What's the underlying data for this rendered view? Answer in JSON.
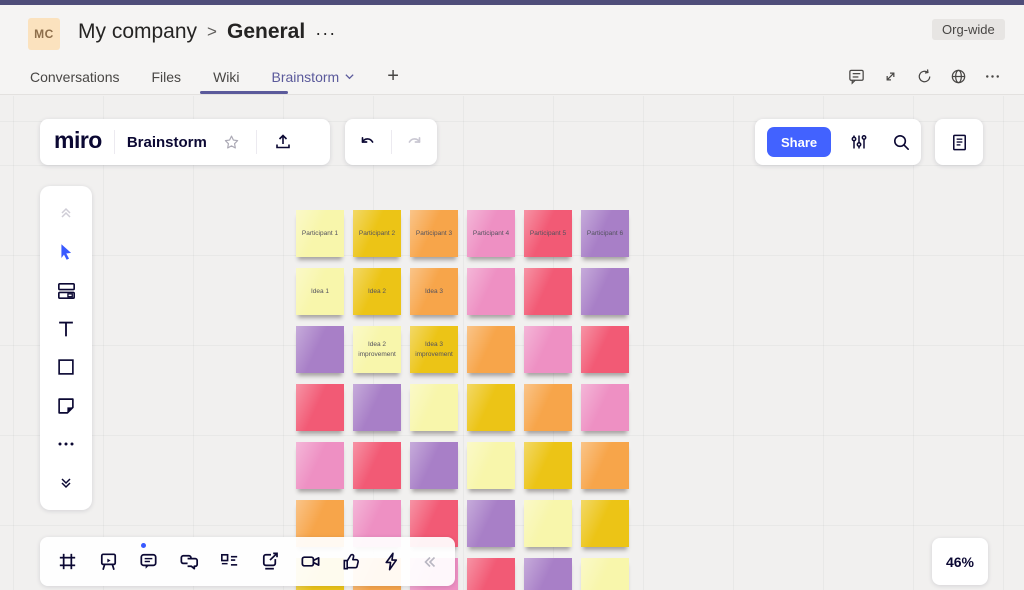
{
  "teams": {
    "avatar_initials": "MC",
    "breadcrumb": {
      "team": "My company",
      "separator": ">",
      "channel": "General",
      "more": "···"
    },
    "org_badge": "Org-wide",
    "tabs": [
      {
        "label": "Conversations",
        "active": false
      },
      {
        "label": "Files",
        "active": false
      },
      {
        "label": "Wiki",
        "active": false
      },
      {
        "label": "Brainstorm",
        "active": true
      }
    ],
    "add_tab_label": "+",
    "header_icons": [
      "chat-icon",
      "expand-icon",
      "refresh-icon",
      "globe-icon",
      "more-icon"
    ]
  },
  "miro": {
    "logo": "miro",
    "board_title": "Brainstorm",
    "share_label": "Share",
    "zoom_level": "46%",
    "toolbar_icons_left": [
      "collapse-up-icon",
      "cursor-icon",
      "templates-icon",
      "text-icon",
      "shape-icon",
      "sticky-note-icon",
      "more-icon",
      "collapse-down-icon"
    ],
    "toolbar_icons_bottom": [
      "frame-icon",
      "presentation-icon",
      "comment-icon",
      "chat-icon",
      "cards-icon",
      "screen-share-icon",
      "video-icon",
      "reactions-icon",
      "quick-actions-icon",
      "collapse-left-icon"
    ],
    "colors": {
      "share_blue": "#4262ff",
      "cursor_blue": "#3859ff",
      "teams_purple": "#5b5a9b",
      "logo_navy": "#0b0833"
    }
  },
  "board": {
    "columns": 6,
    "rows": 7,
    "palette": {
      "py": "#f8f6ab",
      "gd": "#ecc416",
      "or": "#f7a54a",
      "pk": "#ee90c3",
      "rd": "#f25a75",
      "pu": "#a87fc7"
    },
    "grid": [
      [
        {
          "c": "py",
          "t": "Participant 1"
        },
        {
          "c": "gd",
          "t": "Participant 2"
        },
        {
          "c": "or",
          "t": "Participant 3"
        },
        {
          "c": "pk",
          "t": "Participant 4"
        },
        {
          "c": "rd",
          "t": "Participant 5"
        },
        {
          "c": "pu",
          "t": "Participant 6"
        }
      ],
      [
        {
          "c": "py",
          "t": "Idea 1"
        },
        {
          "c": "gd",
          "t": "Idea 2"
        },
        {
          "c": "or",
          "t": "Idea 3"
        },
        {
          "c": "pk",
          "t": ""
        },
        {
          "c": "rd",
          "t": ""
        },
        {
          "c": "pu",
          "t": ""
        }
      ],
      [
        {
          "c": "pu",
          "t": ""
        },
        {
          "c": "py",
          "t": "Idea 2 improvement"
        },
        {
          "c": "gd",
          "t": "Idea 3 improvement"
        },
        {
          "c": "or",
          "t": ""
        },
        {
          "c": "pk",
          "t": ""
        },
        {
          "c": "rd",
          "t": ""
        }
      ],
      [
        {
          "c": "rd",
          "t": ""
        },
        {
          "c": "pu",
          "t": ""
        },
        {
          "c": "py",
          "t": ""
        },
        {
          "c": "gd",
          "t": ""
        },
        {
          "c": "or",
          "t": ""
        },
        {
          "c": "pk",
          "t": ""
        }
      ],
      [
        {
          "c": "pk",
          "t": ""
        },
        {
          "c": "rd",
          "t": ""
        },
        {
          "c": "pu",
          "t": ""
        },
        {
          "c": "py",
          "t": ""
        },
        {
          "c": "gd",
          "t": ""
        },
        {
          "c": "or",
          "t": ""
        }
      ],
      [
        {
          "c": "or",
          "t": ""
        },
        {
          "c": "pk",
          "t": ""
        },
        {
          "c": "rd",
          "t": ""
        },
        {
          "c": "pu",
          "t": ""
        },
        {
          "c": "py",
          "t": ""
        },
        {
          "c": "gd",
          "t": ""
        }
      ],
      [
        {
          "c": "gd",
          "t": ""
        },
        {
          "c": "or",
          "t": ""
        },
        {
          "c": "pk",
          "t": ""
        },
        {
          "c": "rd",
          "t": ""
        },
        {
          "c": "pu",
          "t": ""
        },
        {
          "c": "py",
          "t": ""
        }
      ]
    ]
  }
}
